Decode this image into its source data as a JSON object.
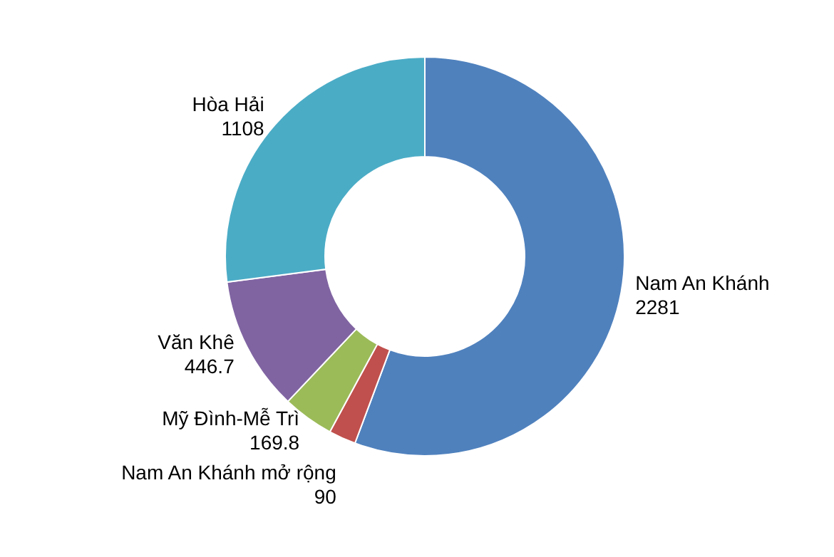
{
  "chart_data": {
    "type": "donut",
    "categories": [
      "Nam An Khánh",
      "Nam An Khánh mở rộng",
      "Mỹ Đình-Mễ Trì",
      "Văn Khê",
      "Hòa Hải"
    ],
    "values": [
      2281,
      90,
      169.8,
      446.7,
      1108
    ],
    "colors": [
      "#4f81bd",
      "#c0504d",
      "#9bbb59",
      "#8064a2",
      "#4bacc6"
    ],
    "data_labels": true
  }
}
